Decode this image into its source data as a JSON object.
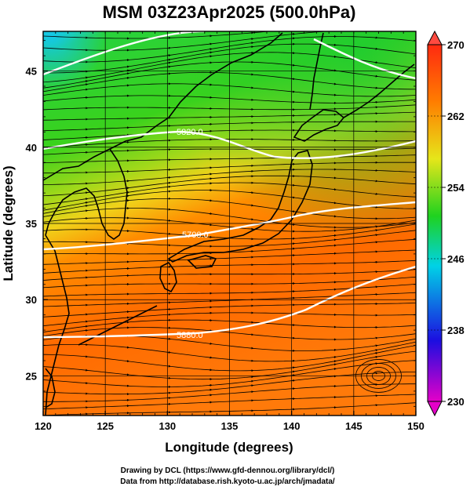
{
  "title": "MSM 03Z23Apr2025 (500.0hPa)",
  "map": {
    "xlabel": "Longitude (degrees)",
    "ylabel": "Latitude  (degrees)",
    "xlim": [
      120,
      150
    ],
    "ylim": [
      22.4,
      47.6
    ],
    "xticks": [
      "120",
      "125",
      "130",
      "135",
      "140",
      "145",
      "150"
    ],
    "yticks": [
      "25",
      "30",
      "35",
      "40",
      "45"
    ],
    "grid": "on",
    "field": "temperature (K) shaded, wind streamlines",
    "contour_labels": [
      "5820.0",
      "5700.0",
      "5880.0"
    ]
  },
  "colorbar": {
    "range": [
      230,
      270
    ],
    "ticks": [
      "270",
      "262",
      "254",
      "246",
      "238",
      "230"
    ],
    "colors_low_to_high": [
      "#e400c8",
      "#1c0ee0",
      "#00d2e6",
      "#1fd21f",
      "#e6e61a",
      "#ff7d00",
      "#ff2a10"
    ]
  },
  "credits": {
    "line1": "Drawing by DCL (https://www.gfd-dennou.org/library/dcl/)",
    "line2": "Data from http://database.rish.kyoto-u.ac.jp/arch/jmadata/"
  }
}
